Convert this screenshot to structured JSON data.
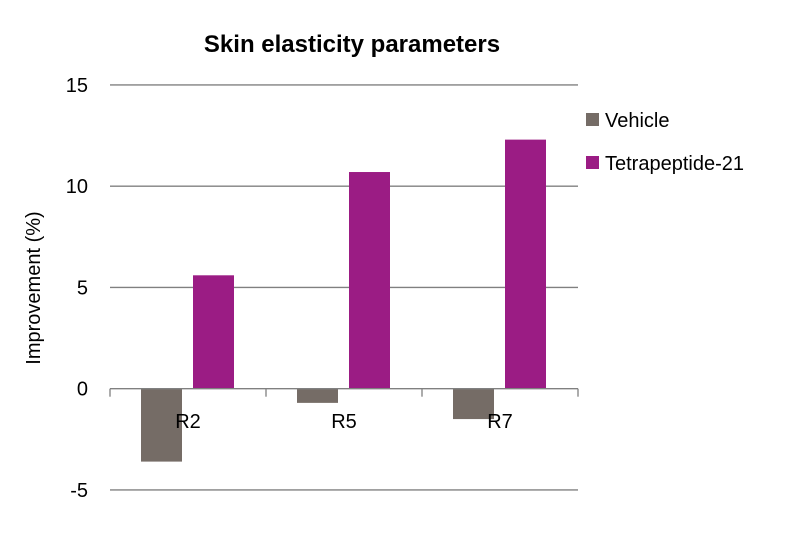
{
  "chart_data": {
    "type": "bar",
    "title": "Skin elasticity parameters",
    "xlabel": "",
    "ylabel": "Improvement (%)",
    "categories": [
      "R2",
      "R5",
      "R7"
    ],
    "series": [
      {
        "name": "Vehicle",
        "values": [
          -3.6,
          -0.7,
          -1.5
        ],
        "color": "#756c66"
      },
      {
        "name": "Tetrapeptide-21",
        "values": [
          5.6,
          10.7,
          12.3
        ],
        "color": "#9b1c84"
      }
    ],
    "ylim": [
      -5,
      15
    ],
    "yticks": [
      -5,
      0,
      5,
      10,
      15
    ],
    "grid": true,
    "legend": "right"
  }
}
